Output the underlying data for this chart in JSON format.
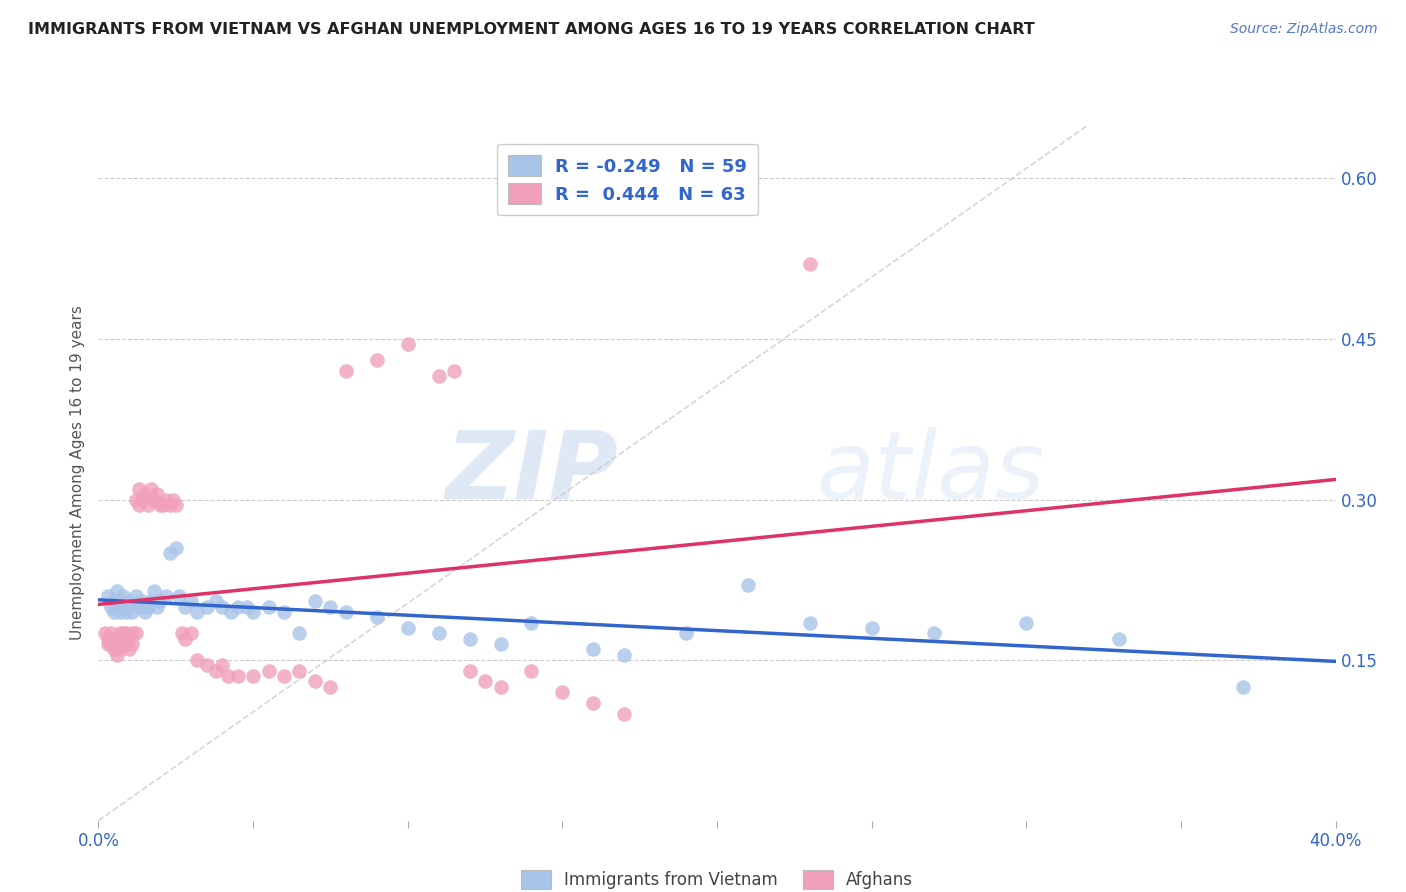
{
  "title": "IMMIGRANTS FROM VIETNAM VS AFGHAN UNEMPLOYMENT AMONG AGES 16 TO 19 YEARS CORRELATION CHART",
  "source": "Source: ZipAtlas.com",
  "ylabel": "Unemployment Among Ages 16 to 19 years",
  "xlim": [
    0.0,
    0.4
  ],
  "ylim": [
    0.0,
    0.65
  ],
  "yticks": [
    0.15,
    0.3,
    0.45,
    0.6
  ],
  "ytick_labels": [
    "15.0%",
    "30.0%",
    "45.0%",
    "60.0%"
  ],
  "xticks": [
    0.0,
    0.05,
    0.1,
    0.15,
    0.2,
    0.25,
    0.3,
    0.35,
    0.4
  ],
  "xtick_labels": [
    "0.0%",
    "",
    "",
    "",
    "",
    "",
    "",
    "",
    "40.0%"
  ],
  "legend_label_blue": "Immigrants from Vietnam",
  "legend_label_pink": "Afghans",
  "blue_color": "#a8c4e8",
  "pink_color": "#f0a0b8",
  "blue_line_color": "#3366cc",
  "pink_line_color": "#dd3366",
  "title_color": "#222222",
  "watermark_color": "#dce8f5",
  "blue_scatter_x": [
    0.003,
    0.004,
    0.005,
    0.005,
    0.006,
    0.007,
    0.007,
    0.008,
    0.008,
    0.009,
    0.01,
    0.01,
    0.011,
    0.012,
    0.013,
    0.014,
    0.015,
    0.015,
    0.016,
    0.017,
    0.018,
    0.019,
    0.02,
    0.022,
    0.023,
    0.025,
    0.026,
    0.028,
    0.03,
    0.032,
    0.035,
    0.038,
    0.04,
    0.043,
    0.045,
    0.048,
    0.05,
    0.055,
    0.06,
    0.065,
    0.07,
    0.075,
    0.08,
    0.09,
    0.1,
    0.11,
    0.12,
    0.13,
    0.14,
    0.16,
    0.17,
    0.19,
    0.21,
    0.23,
    0.25,
    0.27,
    0.3,
    0.33,
    0.37
  ],
  "blue_scatter_y": [
    0.21,
    0.2,
    0.205,
    0.195,
    0.215,
    0.205,
    0.195,
    0.2,
    0.21,
    0.195,
    0.2,
    0.205,
    0.195,
    0.21,
    0.2,
    0.205,
    0.2,
    0.195,
    0.2,
    0.205,
    0.215,
    0.2,
    0.205,
    0.21,
    0.25,
    0.255,
    0.21,
    0.2,
    0.205,
    0.195,
    0.2,
    0.205,
    0.2,
    0.195,
    0.2,
    0.2,
    0.195,
    0.2,
    0.195,
    0.175,
    0.205,
    0.2,
    0.195,
    0.19,
    0.18,
    0.175,
    0.17,
    0.165,
    0.185,
    0.16,
    0.155,
    0.175,
    0.22,
    0.185,
    0.18,
    0.175,
    0.185,
    0.17,
    0.125
  ],
  "pink_scatter_x": [
    0.002,
    0.003,
    0.003,
    0.004,
    0.004,
    0.005,
    0.005,
    0.006,
    0.006,
    0.007,
    0.007,
    0.008,
    0.008,
    0.009,
    0.009,
    0.01,
    0.01,
    0.011,
    0.011,
    0.012,
    0.012,
    0.013,
    0.013,
    0.014,
    0.015,
    0.016,
    0.017,
    0.018,
    0.019,
    0.02,
    0.021,
    0.022,
    0.023,
    0.024,
    0.025,
    0.027,
    0.028,
    0.03,
    0.032,
    0.035,
    0.038,
    0.04,
    0.042,
    0.045,
    0.05,
    0.055,
    0.06,
    0.065,
    0.07,
    0.075,
    0.08,
    0.09,
    0.1,
    0.11,
    0.115,
    0.12,
    0.125,
    0.13,
    0.14,
    0.15,
    0.16,
    0.17,
    0.23
  ],
  "pink_scatter_y": [
    0.175,
    0.17,
    0.165,
    0.175,
    0.165,
    0.16,
    0.17,
    0.155,
    0.165,
    0.16,
    0.175,
    0.165,
    0.175,
    0.165,
    0.175,
    0.16,
    0.17,
    0.175,
    0.165,
    0.175,
    0.3,
    0.295,
    0.31,
    0.3,
    0.305,
    0.295,
    0.31,
    0.3,
    0.305,
    0.295,
    0.295,
    0.3,
    0.295,
    0.3,
    0.295,
    0.175,
    0.17,
    0.175,
    0.15,
    0.145,
    0.14,
    0.145,
    0.135,
    0.135,
    0.135,
    0.14,
    0.135,
    0.14,
    0.13,
    0.125,
    0.42,
    0.43,
    0.445,
    0.415,
    0.42,
    0.14,
    0.13,
    0.125,
    0.14,
    0.12,
    0.11,
    0.1,
    0.52
  ]
}
